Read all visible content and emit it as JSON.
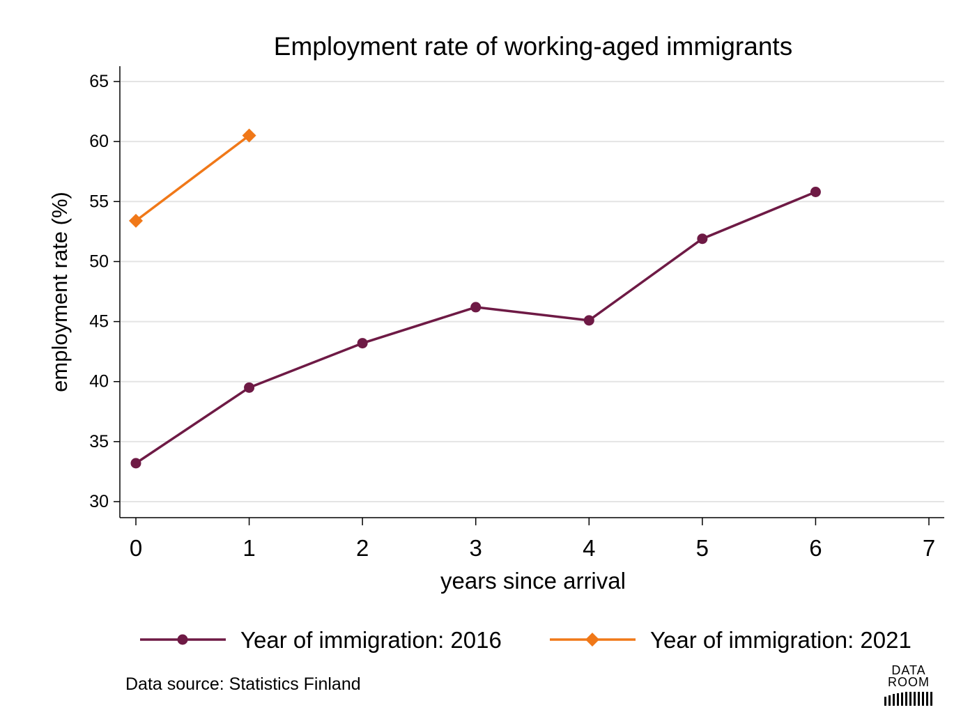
{
  "title": "Employment rate of working-aged immigrants",
  "source_note": "Data source: Statistics Finland",
  "logo": {
    "line1": "DATA",
    "line2": "ROOM"
  },
  "colors": {
    "series_2016": "#6e1a45",
    "series_2021": "#f07818",
    "grid": "#e4e4e4",
    "axis": "#000000"
  },
  "chart_data": {
    "type": "line",
    "title": "Employment rate of working-aged immigrants",
    "xlabel": "years since arrival",
    "ylabel": "employment rate (%)",
    "xlim": [
      0,
      7
    ],
    "ylim": [
      30,
      65
    ],
    "x_ticks": [
      0,
      1,
      2,
      3,
      4,
      5,
      6,
      7
    ],
    "y_ticks": [
      30,
      35,
      40,
      45,
      50,
      55,
      60,
      65
    ],
    "grid": true,
    "legend_position": "bottom",
    "series": [
      {
        "name": "Year of immigration: 2016",
        "color": "#6e1a45",
        "marker": "circle",
        "x": [
          0,
          1,
          2,
          3,
          4,
          5,
          6
        ],
        "values": [
          33.2,
          39.5,
          43.2,
          46.2,
          45.1,
          51.9,
          55.8
        ]
      },
      {
        "name": "Year of immigration: 2021",
        "color": "#f07818",
        "marker": "diamond",
        "x": [
          0,
          1
        ],
        "values": [
          53.4,
          60.5
        ]
      }
    ]
  }
}
